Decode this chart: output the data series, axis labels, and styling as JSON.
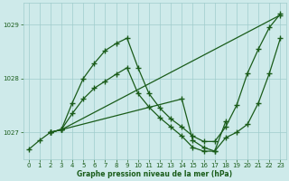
{
  "bg_color": "#ceeaea",
  "grid_color": "#a0cccc",
  "line_color": "#1a5c1a",
  "marker": "+",
  "markersize": 4,
  "linewidth": 0.9,
  "markeredgewidth": 1.0,
  "ylim": [
    1026.5,
    1029.4
  ],
  "xlim": [
    -0.5,
    23.5
  ],
  "yticks": [
    1027,
    1028,
    1029
  ],
  "xticks": [
    0,
    1,
    2,
    3,
    4,
    5,
    6,
    7,
    8,
    9,
    10,
    11,
    12,
    13,
    14,
    15,
    16,
    17,
    18,
    19,
    20,
    21,
    22,
    23
  ],
  "xlabel": "Graphe pression niveau de la mer (hPa)",
  "lines": [
    {
      "x": [
        0,
        1,
        2,
        3,
        4,
        5,
        6,
        7,
        8,
        9,
        10,
        11,
        12,
        13,
        14,
        15,
        16,
        17,
        18,
        19,
        20,
        21,
        22,
        23
      ],
      "y": [
        1026.68,
        1026.85,
        1027.0,
        1027.05,
        1027.55,
        1028.0,
        1028.28,
        1028.52,
        1028.65,
        1028.75,
        1028.2,
        1027.72,
        1027.45,
        1027.25,
        1027.1,
        1026.93,
        1026.83,
        1026.83,
        1027.1,
        1027.5,
        1028.1,
        1028.55,
        1028.95,
        1029.2
      ]
    },
    {
      "x": [
        2,
        3,
        23
      ],
      "y": [
        1027.0,
        1027.05,
        1029.18
      ]
    },
    {
      "x": [
        2,
        3,
        4,
        5,
        6,
        7,
        8,
        9,
        10,
        11,
        12,
        13,
        14,
        15,
        16,
        17,
        18
      ],
      "y": [
        1027.0,
        1027.05,
        1027.35,
        1027.62,
        1027.82,
        1027.95,
        1028.08,
        1028.2,
        1027.72,
        1027.47,
        1027.27,
        1027.1,
        1026.93,
        1026.72,
        1026.65,
        1026.65,
        1027.2
      ]
    },
    {
      "x": [
        2,
        3,
        14,
        15,
        16,
        17,
        18,
        19,
        20,
        21,
        22,
        23
      ],
      "y": [
        1027.0,
        1027.05,
        1027.62,
        1026.85,
        1026.72,
        1026.65,
        1026.9,
        1027.0,
        1027.15,
        1027.55,
        1028.1,
        1028.75
      ]
    }
  ]
}
